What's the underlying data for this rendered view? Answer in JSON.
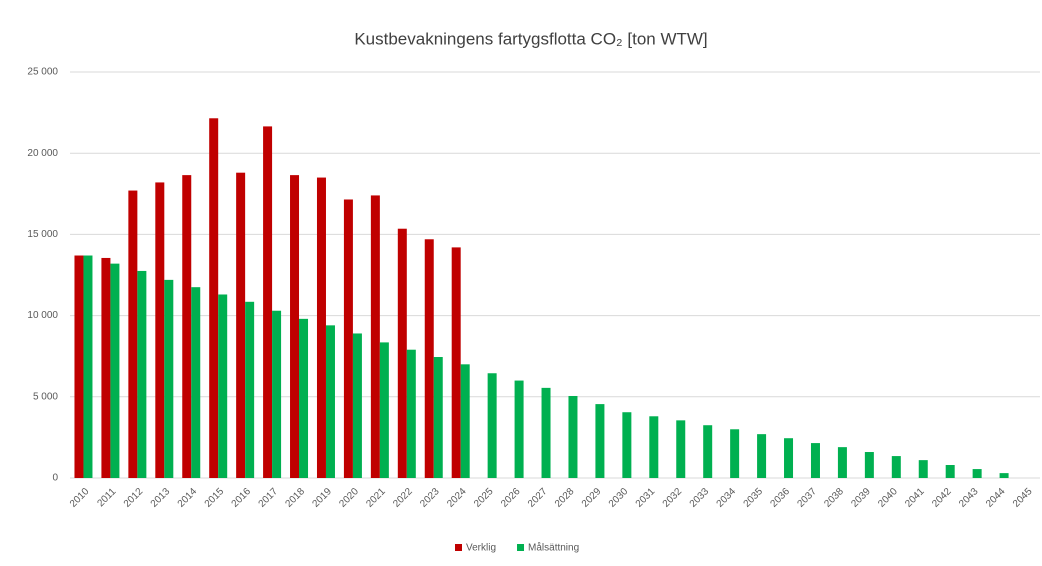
{
  "chart_data": {
    "type": "bar",
    "title": "Kustbevakningens fartygsflotta CO₂ [ton WTW]",
    "categories": [
      "2010",
      "2011",
      "2012",
      "2013",
      "2014",
      "2015",
      "2016",
      "2017",
      "2018",
      "2019",
      "2020",
      "2021",
      "2022",
      "2023",
      "2024",
      "2025",
      "2026",
      "2027",
      "2028",
      "2029",
      "2030",
      "2031",
      "2032",
      "2033",
      "2034",
      "2035",
      "2036",
      "2037",
      "2038",
      "2039",
      "2040",
      "2041",
      "2042",
      "2043",
      "2044",
      "2045"
    ],
    "series": [
      {
        "name": "Verklig",
        "color": "#c00000",
        "values": [
          13700,
          13550,
          17700,
          18200,
          18650,
          22150,
          18800,
          21650,
          18650,
          18500,
          17150,
          17400,
          15350,
          14700,
          14200,
          null,
          null,
          null,
          null,
          null,
          null,
          null,
          null,
          null,
          null,
          null,
          null,
          null,
          null,
          null,
          null,
          null,
          null,
          null,
          null,
          null
        ]
      },
      {
        "name": "Målsättning",
        "color": "#00b050",
        "values": [
          13700,
          13200,
          12750,
          12200,
          11750,
          11300,
          10850,
          10300,
          9800,
          9400,
          8900,
          8350,
          7900,
          7450,
          7000,
          6450,
          6000,
          5550,
          5050,
          4550,
          4050,
          3800,
          3550,
          3250,
          3000,
          2700,
          2450,
          2150,
          1900,
          1600,
          1350,
          1100,
          800,
          550,
          300,
          0
        ]
      }
    ],
    "ylim": [
      0,
      25000
    ],
    "yticks": [
      0,
      {
        "value": 5000,
        "label": "5 000"
      },
      {
        "value": 10000,
        "label": "10 000"
      },
      {
        "value": 15000,
        "label": "15 000"
      },
      {
        "value": 20000,
        "label": "20 000"
      },
      {
        "value": 25000,
        "label": "25 000"
      }
    ],
    "grid": true,
    "legend": "bottom"
  }
}
